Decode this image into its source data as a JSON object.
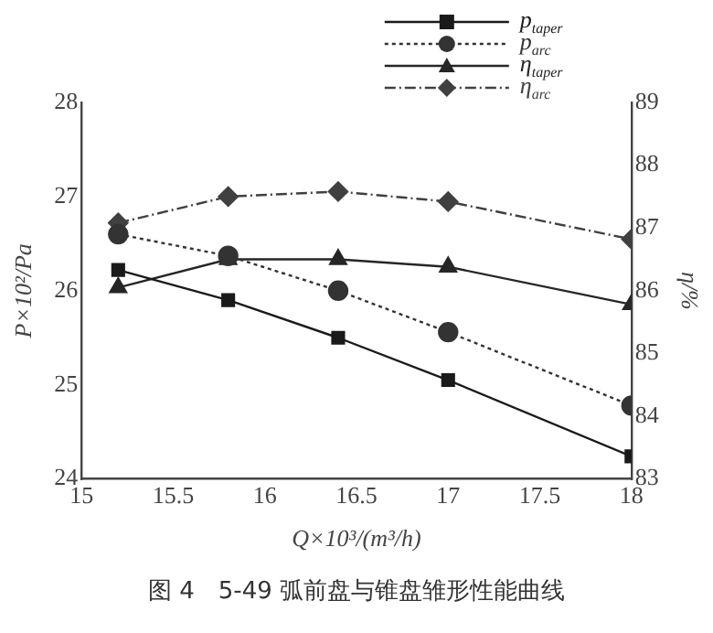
{
  "chart_data": {
    "type": "line",
    "xlabel": "Q×10³/(m³/h)",
    "ylabel": "P×10²/Pa",
    "y2label": "η/%",
    "x": [
      15.2,
      15.8,
      16.4,
      17,
      18
    ],
    "xlim": [
      15,
      18
    ],
    "xticks": [
      15,
      15.5,
      16,
      16.5,
      17,
      17.5,
      18
    ],
    "ylim": [
      24,
      28
    ],
    "yticks": [
      24,
      25,
      26,
      27,
      28
    ],
    "y2lim": [
      83,
      89
    ],
    "y2ticks": [
      83,
      84,
      85,
      86,
      87,
      88,
      89
    ],
    "grid": false,
    "legend": "top right",
    "series": [
      {
        "name": "p$_{taper}$",
        "color": "#1a1a1a",
        "marker": "square",
        "line_style": "solid",
        "values": [
          26.22,
          25.9,
          25.5,
          25.05,
          24.24
        ]
      },
      {
        "name": "p$_{arc}$",
        "color": "#333333",
        "marker": "circle",
        "line_style": "dotted",
        "values": [
          26.6,
          26.37,
          26.0,
          25.56,
          24.78
        ]
      },
      {
        "name": "η$_{taper}$",
        "color": "#262626",
        "marker": "triangle",
        "line_style": "solid",
        "axis": "y2",
        "values": [
          86.05,
          86.5,
          86.5,
          86.38,
          85.78
        ]
      },
      {
        "name": "η$_{arc}$",
        "color": "#404040",
        "marker": "diamond",
        "line_style": "dashed",
        "axis": "y2",
        "values": [
          87.08,
          87.5,
          87.58,
          87.42,
          86.82
        ]
      }
    ],
    "annotations": [
      "图 4　5-49 弧前盘与锥盘雏形性能曲线"
    ]
  }
}
